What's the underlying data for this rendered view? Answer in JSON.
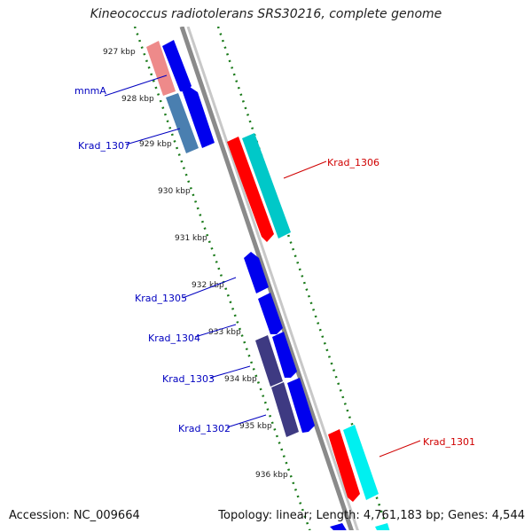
{
  "title": "Kineococcus radiotolerans SRS30216, complete genome",
  "footer": {
    "accession": "Accession: NC_009664",
    "stats": "Topology: linear; Length: 4,761,183 bp; Genes: 4,544"
  },
  "ruler": [
    "927 kbp",
    "928 kbp",
    "929 kbp",
    "930 kbp",
    "931 kbp",
    "932 kbp",
    "933 kbp",
    "934 kbp",
    "935 kbp",
    "936 kbp"
  ],
  "gene_labels_left": [
    "mnmA",
    "Krad_1307",
    "Krad_1305",
    "Krad_1304",
    "Krad_1303",
    "Krad_1302"
  ],
  "gene_labels_right": [
    "Krad_1306",
    "Krad_1301"
  ],
  "colors": {
    "forward_gene": "#0000ee",
    "reverse_gene": "#ff0000",
    "forward_cds": "#00c8c8",
    "label_blue": "#0000c0",
    "label_red": "#d00000",
    "ruler_green": "#1a7a1a",
    "backbone": "#808080"
  }
}
